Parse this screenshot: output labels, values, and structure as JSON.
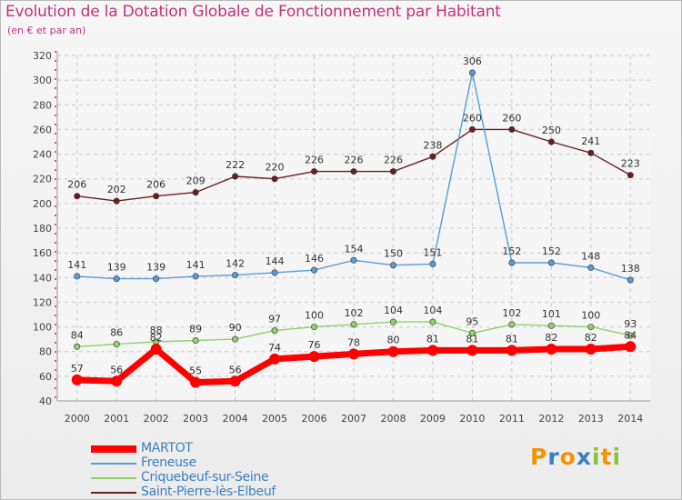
{
  "title": "Evolution de la Dotation Globale de Fonctionnement par Habitant",
  "subtitle": "(en € et par an)",
  "chart_data": {
    "type": "line",
    "x": [
      2000,
      2001,
      2002,
      2003,
      2004,
      2005,
      2006,
      2007,
      2008,
      2009,
      2010,
      2011,
      2012,
      2013,
      2014
    ],
    "ylim": [
      40,
      320
    ],
    "yticks": [
      40,
      60,
      80,
      100,
      120,
      140,
      160,
      180,
      200,
      220,
      240,
      260,
      280,
      300,
      320
    ],
    "grid": true,
    "legend_position": "bottom-left",
    "series": [
      {
        "name": "Saint-Pierre-lès-Elbeuf",
        "color": "#6b1e1e",
        "values": [
          206,
          202,
          206,
          209,
          222,
          220,
          226,
          226,
          226,
          238,
          260,
          260,
          250,
          241,
          223
        ]
      },
      {
        "name": "Freneuse",
        "color": "#5b9bd5",
        "values": [
          141,
          139,
          139,
          141,
          142,
          144,
          146,
          154,
          150,
          151,
          306,
          152,
          152,
          148,
          138
        ]
      },
      {
        "name": "Criquebeuf-sur-Seine",
        "color": "#8ed16b",
        "values": [
          84,
          86,
          88,
          89,
          90,
          97,
          100,
          102,
          104,
          104,
          95,
          102,
          101,
          100,
          93
        ]
      },
      {
        "name": "MARTOT",
        "color": "#ff0000",
        "values": [
          57,
          56,
          82,
          55,
          56,
          74,
          76,
          78,
          80,
          81,
          81,
          81,
          82,
          82,
          84
        ]
      }
    ]
  },
  "legend": [
    {
      "label": "MARTOT",
      "color": "#ff0000"
    },
    {
      "label": "Freneuse",
      "color": "#5b9bd5"
    },
    {
      "label": "Criquebeuf-sur-Seine",
      "color": "#8ed16b"
    },
    {
      "label": "Saint-Pierre-lès-Elbeuf",
      "color": "#6b1e1e"
    }
  ],
  "logo": {
    "letters": [
      "P",
      "r",
      "o",
      "x",
      "i",
      "t",
      "i"
    ],
    "colors": [
      "#f29400",
      "#3a7fc1",
      "#f29400",
      "#3a7fc1",
      "#8ac33f",
      "#f29400",
      "#8ac33f"
    ]
  }
}
